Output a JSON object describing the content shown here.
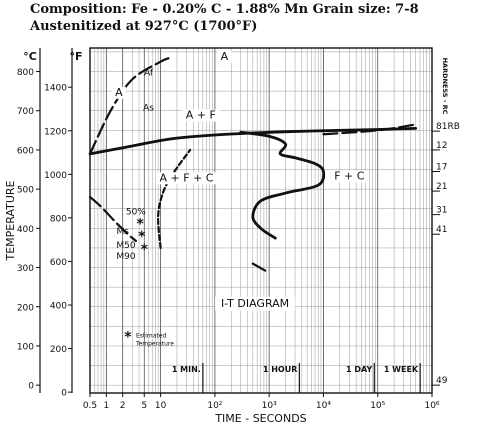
{
  "header": {
    "composition": "Composition: Fe - 0.20% C - 1.88% Mn Grain size: 7-8",
    "austenitized": "Austenitized at 927°C (1700°F)"
  },
  "chart_data": {
    "type": "line",
    "title": "I-T DIAGRAM",
    "xlabel": "TIME - SECONDS",
    "ylabel": "TEMPERATURE",
    "x_scale": "log",
    "xlim": [
      0.5,
      1000000
    ],
    "ylim_celsius": [
      -20,
      860
    ],
    "x_ticks": [
      {
        "value": 0.5,
        "label": "0.5"
      },
      {
        "value": 1,
        "label": "1"
      },
      {
        "value": 2,
        "label": "2"
      },
      {
        "value": 5,
        "label": "5"
      },
      {
        "value": 10,
        "label": "10"
      },
      {
        "value": 100,
        "label": "10²"
      },
      {
        "value": 1000,
        "label": "10³"
      },
      {
        "value": 10000,
        "label": "10⁴"
      },
      {
        "value": 100000,
        "label": "10⁵"
      },
      {
        "value": 1000000,
        "label": "10⁶"
      }
    ],
    "celsius_ticks": [
      0,
      100,
      200,
      300,
      400,
      500,
      600,
      700,
      800
    ],
    "celsius_unit": "°C",
    "fahrenheit_ticks": [
      {
        "c": -17.8,
        "label": "0"
      },
      {
        "c": 93.3,
        "label": "200"
      },
      {
        "c": 204.4,
        "label": "400"
      },
      {
        "c": 315.6,
        "label": "600"
      },
      {
        "c": 426.7,
        "label": "800"
      },
      {
        "c": 537.8,
        "label": "1000"
      },
      {
        "c": 648.9,
        "label": "1200"
      },
      {
        "c": 760,
        "label": "1400"
      }
    ],
    "fahrenheit_unit": "°F",
    "hardness_label": "HARDNESS - RC",
    "hardness_ticks": [
      {
        "c": 648,
        "label": "81RB"
      },
      {
        "c": 600,
        "label": "12"
      },
      {
        "c": 545,
        "label": "17"
      },
      {
        "c": 495,
        "label": "21"
      },
      {
        "c": 435,
        "label": "31"
      },
      {
        "c": 385,
        "label": "41"
      },
      {
        "c": 0,
        "label": "49"
      }
    ],
    "time_marks": [
      {
        "x": 60,
        "label": "1 MIN."
      },
      {
        "x": 3600,
        "label": "1 HOUR"
      },
      {
        "x": 86400,
        "label": "1 DAY"
      },
      {
        "x": 604800,
        "label": "1 WEEK"
      }
    ],
    "regions": [
      {
        "label": "A",
        "x": 150,
        "y": 830
      },
      {
        "label": "A",
        "x": 1.7,
        "y": 738
      },
      {
        "label": "A + F",
        "x": 55,
        "y": 680
      },
      {
        "label": "A + F + C",
        "x": 30,
        "y": 520
      },
      {
        "label": "F + C",
        "x": 30000,
        "y": 525
      }
    ],
    "temperature_labels": [
      {
        "label": "Af",
        "x": 6,
        "y": 790
      },
      {
        "label": "As",
        "x": 6,
        "y": 700
      },
      {
        "label": "50%",
        "x": 3.5,
        "y": 435
      },
      {
        "label": "Ms",
        "x": 2,
        "y": 385
      },
      {
        "label": "M50",
        "x": 2.3,
        "y": 350
      },
      {
        "label": "M90",
        "x": 2.3,
        "y": 322
      }
    ],
    "estimated_points": [
      {
        "x": 4.2,
        "y": 410
      },
      {
        "x": 4.5,
        "y": 378
      },
      {
        "x": 5.0,
        "y": 345
      },
      {
        "x": 2.5,
        "y": 122
      }
    ],
    "legend_estimated": "Estimated Temperature",
    "series": [
      {
        "style": "dashed",
        "points": [
          [
            0.5,
            590
          ],
          [
            1.2,
            700
          ],
          [
            3,
            780
          ],
          [
            10,
            825
          ],
          [
            15,
            835
          ]
        ]
      },
      {
        "style": "dashed",
        "points": [
          [
            0.5,
            480
          ],
          [
            0.8,
            455
          ],
          [
            1.5,
            415
          ],
          [
            2.5,
            385
          ],
          [
            3.5,
            368
          ]
        ]
      },
      {
        "style": "dashed",
        "points": [
          [
            10,
            350
          ],
          [
            9,
            430
          ],
          [
            11,
            490
          ],
          [
            17,
            540
          ],
          [
            35,
            600
          ]
        ]
      },
      {
        "style": "solid",
        "points": [
          [
            0.5,
            590
          ],
          [
            3,
            610
          ],
          [
            15,
            628
          ],
          [
            100,
            638
          ],
          [
            1000,
            645
          ],
          [
            5000,
            648
          ],
          [
            100000,
            652
          ],
          [
            500000,
            655
          ]
        ]
      },
      {
        "style": "solid",
        "points": [
          [
            300,
            645
          ],
          [
            1000,
            635
          ],
          [
            2000,
            615
          ],
          [
            1600,
            590
          ],
          [
            3000,
            580
          ],
          [
            7000,
            565
          ],
          [
            10000,
            545
          ],
          [
            8000,
            510
          ],
          [
            2000,
            490
          ],
          [
            700,
            470
          ],
          [
            500,
            430
          ],
          [
            700,
            400
          ],
          [
            1300,
            375
          ]
        ]
      },
      {
        "style": "dashed",
        "points": [
          [
            10000,
            640
          ],
          [
            100000,
            650
          ],
          [
            500000,
            665
          ]
        ]
      },
      {
        "style": "dashed",
        "points": [
          [
            500,
            310
          ],
          [
            900,
            290
          ]
        ]
      }
    ]
  }
}
